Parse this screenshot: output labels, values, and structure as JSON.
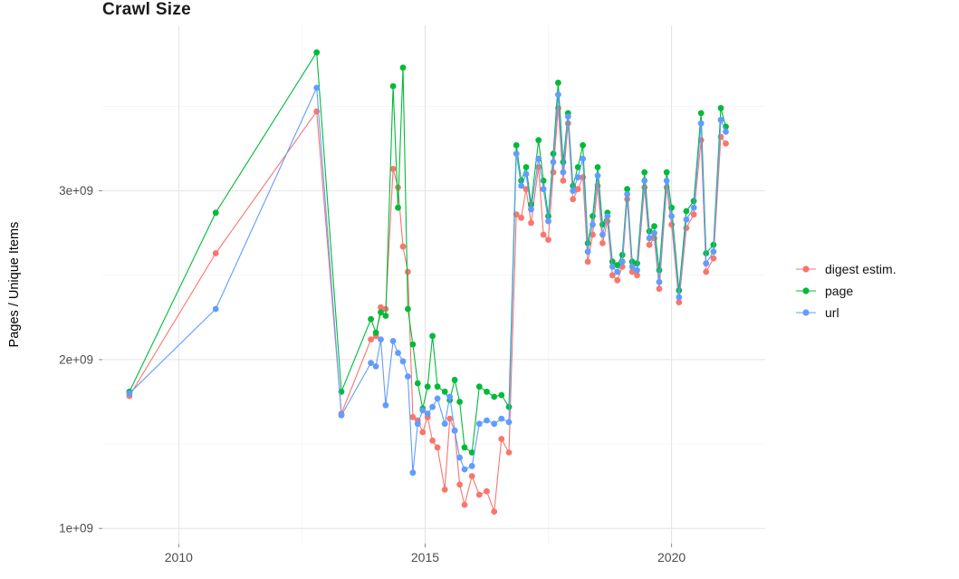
{
  "chart": {
    "title": "Crawl Size",
    "ylabel": "Pages / Unique Items"
  },
  "legend": {
    "items": [
      {
        "label": "digest estim.",
        "color": "#F8766D"
      },
      {
        "label": "page",
        "color": "#00BA38"
      },
      {
        "label": "url",
        "color": "#619CFF"
      }
    ]
  },
  "chart_data": {
    "type": "line",
    "title": "Crawl Size",
    "xlabel": "",
    "ylabel": "Pages / Unique Items",
    "legend_position": "right",
    "grid": true,
    "background": "#ffffff",
    "grid_major_color": "#e4e4e4",
    "grid_minor_color": "#f1f1f1",
    "tick_label_color": "#4d4d4d",
    "xlim": [
      2008.45,
      2021.9
    ],
    "ylim": [
      910000000,
      3980000000
    ],
    "x_ticks": [
      {
        "value": 2010,
        "label": "2010"
      },
      {
        "value": 2015,
        "label": "2015"
      },
      {
        "value": 2020,
        "label": "2020"
      }
    ],
    "x_minor_ticks": [
      2012.5,
      2017.5
    ],
    "y_ticks": [
      {
        "value": 1000000000.0,
        "label": "1e+09"
      },
      {
        "value": 2000000000.0,
        "label": "2e+09"
      },
      {
        "value": 3000000000.0,
        "label": "3e+09"
      }
    ],
    "y_minor_ticks": [
      1500000000.0,
      2500000000.0,
      3500000000.0
    ],
    "x": [
      2009.0,
      2010.75,
      2012.8,
      2013.3,
      2013.9,
      2014.0,
      2014.1,
      2014.2,
      2014.35,
      2014.45,
      2014.55,
      2014.65,
      2014.75,
      2014.85,
      2014.95,
      2015.05,
      2015.15,
      2015.25,
      2015.4,
      2015.5,
      2015.6,
      2015.7,
      2015.8,
      2015.95,
      2016.1,
      2016.25,
      2016.4,
      2016.55,
      2016.7,
      2016.85,
      2016.95,
      2017.05,
      2017.15,
      2017.3,
      2017.4,
      2017.5,
      2017.6,
      2017.7,
      2017.8,
      2017.9,
      2018.0,
      2018.1,
      2018.2,
      2018.3,
      2018.4,
      2018.5,
      2018.6,
      2018.7,
      2018.8,
      2018.9,
      2019.0,
      2019.1,
      2019.2,
      2019.3,
      2019.45,
      2019.55,
      2019.65,
      2019.75,
      2019.9,
      2020.0,
      2020.15,
      2020.3,
      2020.45,
      2020.6,
      2020.7,
      2020.85,
      2021.0,
      2021.1
    ],
    "series": [
      {
        "name": "digest estim.",
        "color": "#F8766D",
        "values": [
          1785000000.0,
          2630000000.0,
          3470000000.0,
          1680000000.0,
          2120000000.0,
          2140000000.0,
          2310000000.0,
          2300000000.0,
          3130000000.0,
          3020000000.0,
          2670000000.0,
          2520000000.0,
          1660000000.0,
          1640000000.0,
          1570000000.0,
          1660000000.0,
          1520000000.0,
          1480000000.0,
          1230000000.0,
          1650000000.0,
          1580000000.0,
          1260000000.0,
          1140000000.0,
          1310000000.0,
          1200000000.0,
          1220000000.0,
          1100000000.0,
          1530000000.0,
          1450000000.0,
          2860000000.0,
          2840000000.0,
          3010000000.0,
          2810000000.0,
          3140000000.0,
          2740000000.0,
          2710000000.0,
          3110000000.0,
          3490000000.0,
          3060000000.0,
          3400000000.0,
          2950000000.0,
          3010000000.0,
          3080000000.0,
          2580000000.0,
          2740000000.0,
          3030000000.0,
          2690000000.0,
          2820000000.0,
          2500000000.0,
          2470000000.0,
          2550000000.0,
          2950000000.0,
          2520000000.0,
          2500000000.0,
          3020000000.0,
          2680000000.0,
          2720000000.0,
          2420000000.0,
          3020000000.0,
          2800000000.0,
          2340000000.0,
          2780000000.0,
          2860000000.0,
          3300000000.0,
          2520000000.0,
          2600000000.0,
          3320000000.0,
          3280000000.0
        ]
      },
      {
        "name": "page",
        "color": "#00BA38",
        "values": [
          1810000000.0,
          2870000000.0,
          3820000000.0,
          1810000000.0,
          2240000000.0,
          2160000000.0,
          2280000000.0,
          2260000000.0,
          3620000000.0,
          2900000000.0,
          3730000000.0,
          2300000000.0,
          2090000000.0,
          1860000000.0,
          1710000000.0,
          1840000000.0,
          2140000000.0,
          1840000000.0,
          1810000000.0,
          1760000000.0,
          1880000000.0,
          1750000000.0,
          1480000000.0,
          1450000000.0,
          1840000000.0,
          1810000000.0,
          1780000000.0,
          1790000000.0,
          1720000000.0,
          3270000000.0,
          3060000000.0,
          3140000000.0,
          2920000000.0,
          3300000000.0,
          3060000000.0,
          2850000000.0,
          3220000000.0,
          3640000000.0,
          3170000000.0,
          3460000000.0,
          3030000000.0,
          3140000000.0,
          3270000000.0,
          2690000000.0,
          2850000000.0,
          3140000000.0,
          2800000000.0,
          2870000000.0,
          2580000000.0,
          2560000000.0,
          2620000000.0,
          3010000000.0,
          2580000000.0,
          2570000000.0,
          3110000000.0,
          2760000000.0,
          2790000000.0,
          2530000000.0,
          3110000000.0,
          2900000000.0,
          2410000000.0,
          2880000000.0,
          2940000000.0,
          3460000000.0,
          2630000000.0,
          2680000000.0,
          3490000000.0,
          3380000000.0
        ]
      },
      {
        "name": "url",
        "color": "#619CFF",
        "values": [
          1800000000.0,
          2300000000.0,
          3610000000.0,
          1670000000.0,
          1980000000.0,
          1960000000.0,
          2120000000.0,
          1730000000.0,
          2110000000.0,
          2040000000.0,
          1990000000.0,
          1900000000.0,
          1330000000.0,
          1620000000.0,
          1700000000.0,
          1680000000.0,
          1720000000.0,
          1770000000.0,
          1620000000.0,
          1780000000.0,
          1580000000.0,
          1420000000.0,
          1350000000.0,
          1370000000.0,
          1620000000.0,
          1640000000.0,
          1620000000.0,
          1650000000.0,
          1630000000.0,
          3220000000.0,
          3030000000.0,
          3100000000.0,
          2890000000.0,
          3190000000.0,
          3010000000.0,
          2820000000.0,
          3170000000.0,
          3570000000.0,
          3110000000.0,
          3440000000.0,
          3000000000.0,
          3080000000.0,
          3190000000.0,
          2640000000.0,
          2800000000.0,
          3090000000.0,
          2740000000.0,
          2850000000.0,
          2550000000.0,
          2520000000.0,
          2580000000.0,
          2980000000.0,
          2550000000.0,
          2530000000.0,
          3060000000.0,
          2720000000.0,
          2750000000.0,
          2460000000.0,
          3060000000.0,
          2850000000.0,
          2370000000.0,
          2830000000.0,
          2900000000.0,
          3400000000.0,
          2570000000.0,
          2640000000.0,
          3420000000.0,
          3350000000.0
        ]
      }
    ]
  }
}
